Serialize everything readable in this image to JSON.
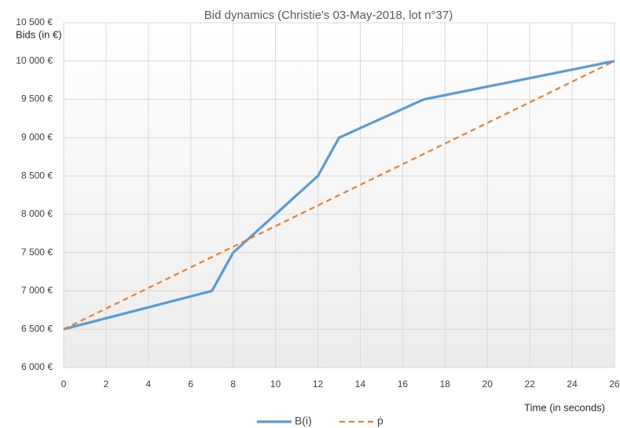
{
  "chart_data": {
    "type": "line",
    "title": "Bid dynamics (Christie's 03-May-2018, lot n°37)",
    "y_label": "Bids (in €)",
    "x_label": "Time (in seconds)",
    "xlim": [
      0,
      26
    ],
    "xticks": [
      0,
      2,
      4,
      6,
      8,
      10,
      12,
      14,
      16,
      18,
      20,
      22,
      24,
      26
    ],
    "ylim": [
      6000,
      10500
    ],
    "yticks": [
      {
        "value": 6000,
        "label": "6 000 €"
      },
      {
        "value": 6500,
        "label": "6 500 €"
      },
      {
        "value": 7000,
        "label": "7 000 €"
      },
      {
        "value": 7500,
        "label": "7 500 €"
      },
      {
        "value": 8000,
        "label": "8 000 €"
      },
      {
        "value": 8500,
        "label": "8 500 €"
      },
      {
        "value": 9000,
        "label": "9 000 €"
      },
      {
        "value": 9500,
        "label": "9 500 €"
      },
      {
        "value": 10000,
        "label": "10 000 €"
      },
      {
        "value": 10500,
        "label": "10 500 €"
      }
    ],
    "grid": true,
    "legend": "bottom",
    "series": [
      {
        "name": "B(i)",
        "color": "#5b9bd5",
        "dashed": false,
        "x": [
          0,
          7,
          8,
          12,
          13,
          17,
          26
        ],
        "values": [
          6500,
          7000,
          7500,
          8500,
          9000,
          9500,
          10000
        ]
      },
      {
        "name": "ṗ",
        "color": "#ed7d31",
        "dashed": true,
        "x": [
          0,
          26
        ],
        "values": [
          6500,
          10000
        ]
      }
    ]
  }
}
